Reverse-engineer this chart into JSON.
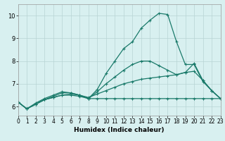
{
  "xlabel": "Humidex (Indice chaleur)",
  "bg_color": "#d8f0f0",
  "line_color": "#1a7a6a",
  "grid_color": "#b8d4d4",
  "xlim": [
    0,
    23
  ],
  "ylim": [
    5.6,
    10.5
  ],
  "yticks": [
    6,
    7,
    8,
    9,
    10
  ],
  "xticks": [
    0,
    1,
    2,
    3,
    4,
    5,
    6,
    7,
    8,
    9,
    10,
    11,
    12,
    13,
    14,
    15,
    16,
    17,
    18,
    19,
    20,
    21,
    22,
    23
  ],
  "series": [
    {
      "x": [
        0,
        1,
        2,
        3,
        4,
        5,
        6,
        7,
        8,
        9,
        10,
        11,
        12,
        13,
        14,
        15,
        16,
        17,
        18,
        19,
        20,
        21,
        22,
        23
      ],
      "y": [
        6.2,
        5.9,
        6.1,
        6.3,
        6.4,
        6.5,
        6.5,
        6.45,
        6.35,
        6.35,
        6.35,
        6.35,
        6.35,
        6.35,
        6.35,
        6.35,
        6.35,
        6.35,
        6.35,
        6.35,
        6.35,
        6.35,
        6.35,
        6.35
      ]
    },
    {
      "x": [
        0,
        1,
        2,
        3,
        4,
        5,
        6,
        7,
        8,
        9,
        10,
        11,
        12,
        13,
        14,
        15,
        16,
        17,
        18,
        19,
        20,
        21,
        22,
        23
      ],
      "y": [
        6.2,
        5.9,
        6.1,
        6.3,
        6.4,
        6.5,
        6.55,
        6.5,
        6.4,
        6.55,
        6.7,
        6.85,
        7.0,
        7.1,
        7.2,
        7.25,
        7.3,
        7.35,
        7.4,
        7.5,
        7.55,
        7.15,
        6.7,
        6.35
      ]
    },
    {
      "x": [
        0,
        1,
        2,
        3,
        4,
        5,
        6,
        7,
        8,
        9,
        10,
        11,
        12,
        13,
        14,
        15,
        16,
        17,
        18,
        19,
        20,
        21,
        22,
        23
      ],
      "y": [
        6.2,
        5.9,
        6.1,
        6.3,
        6.45,
        6.6,
        6.6,
        6.5,
        6.35,
        6.65,
        7.0,
        7.3,
        7.6,
        7.85,
        8.0,
        8.0,
        7.8,
        7.6,
        7.4,
        7.5,
        7.9,
        7.15,
        6.7,
        6.35
      ]
    },
    {
      "x": [
        0,
        1,
        2,
        3,
        4,
        5,
        6,
        7,
        8,
        9,
        10,
        11,
        12,
        13,
        14,
        15,
        16,
        17,
        18,
        19,
        20,
        21,
        22,
        23
      ],
      "y": [
        6.2,
        5.9,
        6.15,
        6.35,
        6.5,
        6.65,
        6.6,
        6.5,
        6.35,
        6.75,
        7.45,
        8.0,
        8.55,
        8.85,
        9.45,
        9.8,
        10.1,
        10.05,
        8.85,
        7.85,
        7.85,
        7.1,
        6.7,
        6.35
      ]
    }
  ]
}
